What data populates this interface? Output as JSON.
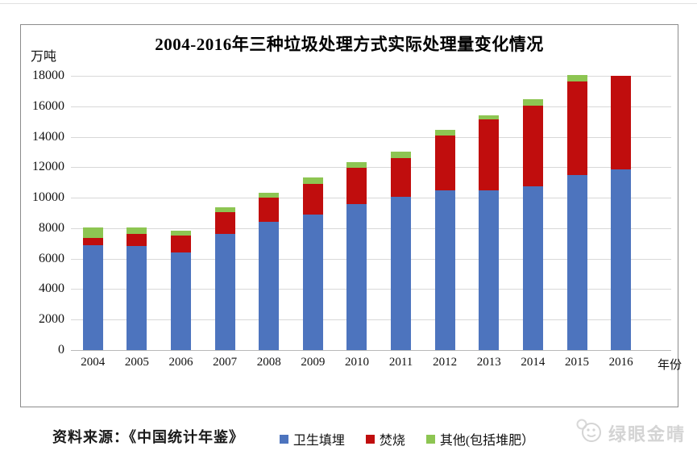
{
  "title": "2004-2016年三种垃圾处理方式实际处理量变化情况",
  "unit_label": "万吨",
  "xaxis_title": "年份",
  "source_text": "资料来源：《中国统计年鉴》",
  "watermark_text": "绿眼金晴",
  "colors": {
    "landfill": "#4d74be",
    "incineration": "#c00d0d",
    "other": "#8dc552",
    "gridline": "#d8d8d8",
    "frame_border": "#8c8c8c",
    "watermark": "#d4d4d4"
  },
  "chart_data": {
    "type": "bar",
    "stacked": true,
    "title": "2004-2016年三种垃圾处理方式实际处理量变化情况",
    "xlabel": "年份",
    "ylabel": "万吨",
    "ylim": [
      0,
      18000
    ],
    "ytick_interval": 2000,
    "yticks": [
      "18000",
      "16000",
      "14000",
      "12000",
      "10000",
      "8000",
      "6000",
      "4000",
      "2000",
      "0"
    ],
    "grid": true,
    "legend_position": "bottom",
    "categories": [
      "2004",
      "2005",
      "2006",
      "2007",
      "2008",
      "2009",
      "2010",
      "2011",
      "2012",
      "2013",
      "2014",
      "2015",
      "2016"
    ],
    "series": [
      {
        "key": "landfill",
        "name": "卫生填埋",
        "color": "#4d74be",
        "values": [
          6900,
          6850,
          6430,
          7630,
          8420,
          8890,
          9580,
          10050,
          10510,
          10500,
          10760,
          11480,
          11880
        ]
      },
      {
        "key": "incineration",
        "name": "焚烧",
        "color": "#c00d0d",
        "values": [
          450,
          800,
          1100,
          1440,
          1570,
          2030,
          2360,
          2550,
          3560,
          4620,
          5300,
          6150,
          6120
        ]
      },
      {
        "key": "other",
        "name": "其他(包括堆肥）",
        "color": "#8dc552",
        "values": [
          700,
          400,
          330,
          330,
          310,
          390,
          390,
          420,
          390,
          290,
          390,
          400,
          0
        ]
      }
    ]
  }
}
